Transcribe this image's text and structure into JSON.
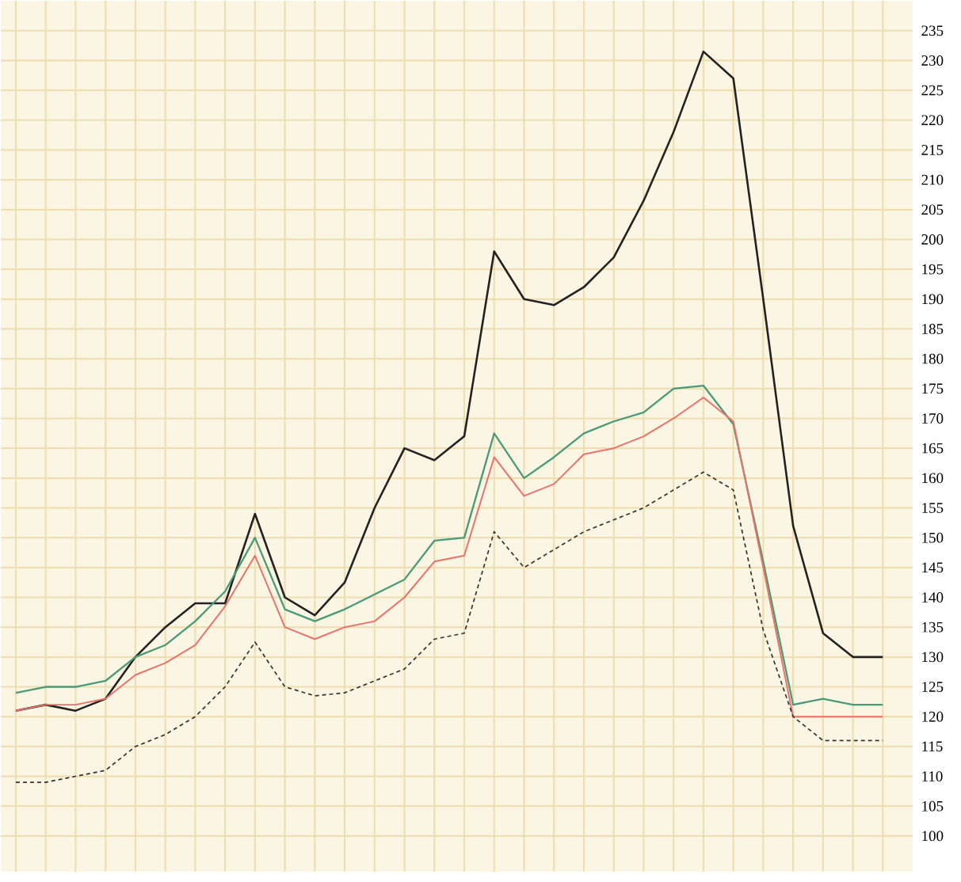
{
  "chart_data": {
    "type": "line",
    "categories": [
      null,
      null,
      null,
      null,
      null,
      null,
      null,
      null,
      null,
      null,
      null,
      null,
      null,
      null,
      null,
      null,
      null,
      null,
      null,
      null,
      null,
      null,
      null,
      null,
      null,
      null,
      null,
      null,
      null,
      null
    ],
    "series": [
      {
        "color": "#222222",
        "line_style": "solid",
        "values": [
          121,
          122,
          121,
          123,
          130,
          135,
          139,
          139,
          154,
          140,
          137,
          142.5,
          155,
          165,
          163,
          167,
          198,
          190,
          189,
          192,
          197,
          206.5,
          218,
          231.5,
          227,
          190,
          152,
          134,
          130,
          130
        ]
      },
      {
        "color": "#4a9a78",
        "line_style": "solid",
        "values": [
          124,
          125,
          125,
          126,
          130,
          132,
          136,
          141,
          150,
          138,
          136,
          138,
          140.5,
          143,
          149.5,
          150,
          167.5,
          160,
          163.5,
          167.5,
          169.5,
          171,
          175,
          175.5,
          169,
          146,
          122,
          123,
          122,
          122
        ]
      },
      {
        "color": "#e8736a",
        "line_style": "solid",
        "values": [
          121,
          122,
          122,
          123,
          127,
          129,
          132,
          138.5,
          147,
          135,
          133,
          135,
          136,
          140,
          146,
          147,
          163.5,
          157,
          159,
          164,
          165,
          167,
          170,
          173.5,
          169.5,
          145,
          120,
          120,
          120,
          120
        ]
      },
      {
        "color": "#333333",
        "line_style": "dashed",
        "values": [
          109,
          109,
          110,
          111,
          115,
          117,
          120,
          125,
          132.5,
          125,
          123.5,
          124,
          126,
          128,
          133,
          134,
          151,
          145,
          148,
          151,
          153,
          155,
          158,
          161,
          158,
          134.5,
          120,
          116,
          116,
          116
        ]
      }
    ],
    "ylim": [
      94,
      240
    ],
    "yticks": [
      100,
      105,
      110,
      115,
      120,
      125,
      130,
      135,
      140,
      145,
      150,
      155,
      160,
      165,
      170,
      175,
      180,
      185,
      190,
      195,
      200,
      205,
      210,
      215,
      220,
      225,
      230,
      235
    ],
    "grid": true,
    "marker": "none"
  }
}
